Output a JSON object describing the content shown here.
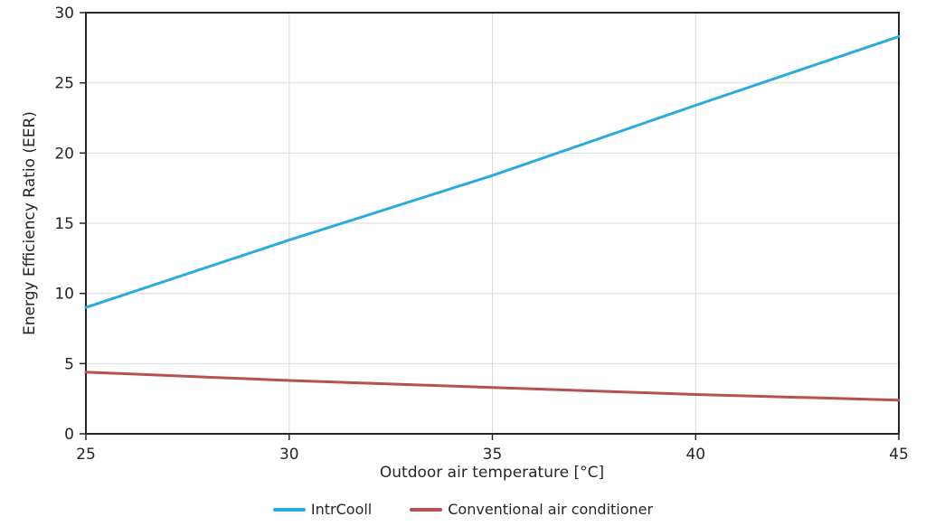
{
  "chart_data": {
    "type": "line",
    "title": "",
    "xlabel": "Outdoor air temperature [°C]",
    "ylabel": "Energy Efficiency Ratio (EER)",
    "x": [
      25,
      30,
      35,
      40,
      45
    ],
    "xlim": [
      25,
      45
    ],
    "ylim": [
      0,
      30
    ],
    "x_ticks": [
      25,
      30,
      35,
      40,
      45
    ],
    "y_ticks": [
      0,
      5,
      10,
      15,
      20,
      25,
      30
    ],
    "grid": true,
    "legend_position": "bottom-center",
    "axis_color": "#262626",
    "gridline_color": "#D9D9D9",
    "background_color": "#FFFFFF",
    "series": [
      {
        "name": "IntrCooll",
        "color": "#29ABE2",
        "values": [
          9.0,
          13.8,
          18.4,
          23.4,
          28.3
        ]
      },
      {
        "name": "Conventional air conditioner",
        "color": "#B5514E",
        "values": [
          4.4,
          3.8,
          3.3,
          2.8,
          2.4
        ]
      }
    ]
  }
}
